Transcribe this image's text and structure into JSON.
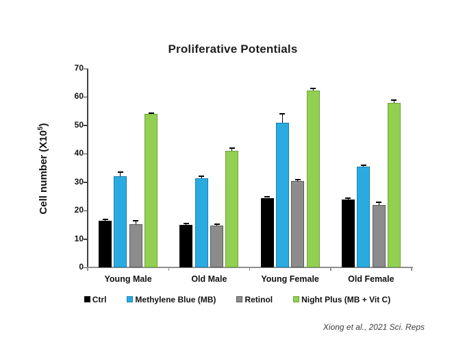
{
  "figure": {
    "title": "Proliferative Potentials",
    "caption": "Xiong et al., 2021 Sci. Reps"
  },
  "axes": {
    "ylabel": {
      "prefix": "Cell number (X10",
      "sup": "5",
      "suffix": ")"
    }
  },
  "chart_data": {
    "type": "bar",
    "title": "Proliferative Potentials",
    "ylabel": "Cell number (X10⁵)",
    "xlabel": "",
    "ylim": [
      0,
      70
    ],
    "y_tick_step": 10,
    "grid": false,
    "error_bars": true,
    "legend_position": "bottom",
    "categories": [
      "Young Male",
      "Old Male",
      "Young Female",
      "Old Female"
    ],
    "series": [
      {
        "name": "Ctrl",
        "fill": "#000000",
        "border": "#000000",
        "values": [
          16.5,
          15.0,
          24.5,
          24.0
        ],
        "errors": [
          0.3,
          0.4,
          0.4,
          0.5
        ]
      },
      {
        "name": "Methylene Blue (MB)",
        "fill": "#29ABE2",
        "border": "#1B7FAE",
        "values": [
          32.0,
          31.3,
          51.0,
          35.5
        ],
        "errors": [
          1.5,
          0.8,
          3.0,
          0.4
        ]
      },
      {
        "name": "Retinol",
        "fill": "#8C8C8C",
        "border": "#595959",
        "values": [
          15.3,
          14.7,
          30.3,
          22.0
        ],
        "errors": [
          1.2,
          0.5,
          0.6,
          1.0
        ]
      },
      {
        "name": "Night Plus (MB + Vit C)",
        "fill": "#92D050",
        "border": "#6FA33B",
        "values": [
          54.0,
          41.0,
          62.3,
          58.0
        ],
        "errors": [
          0.3,
          1.0,
          0.7,
          1.0
        ]
      }
    ]
  }
}
